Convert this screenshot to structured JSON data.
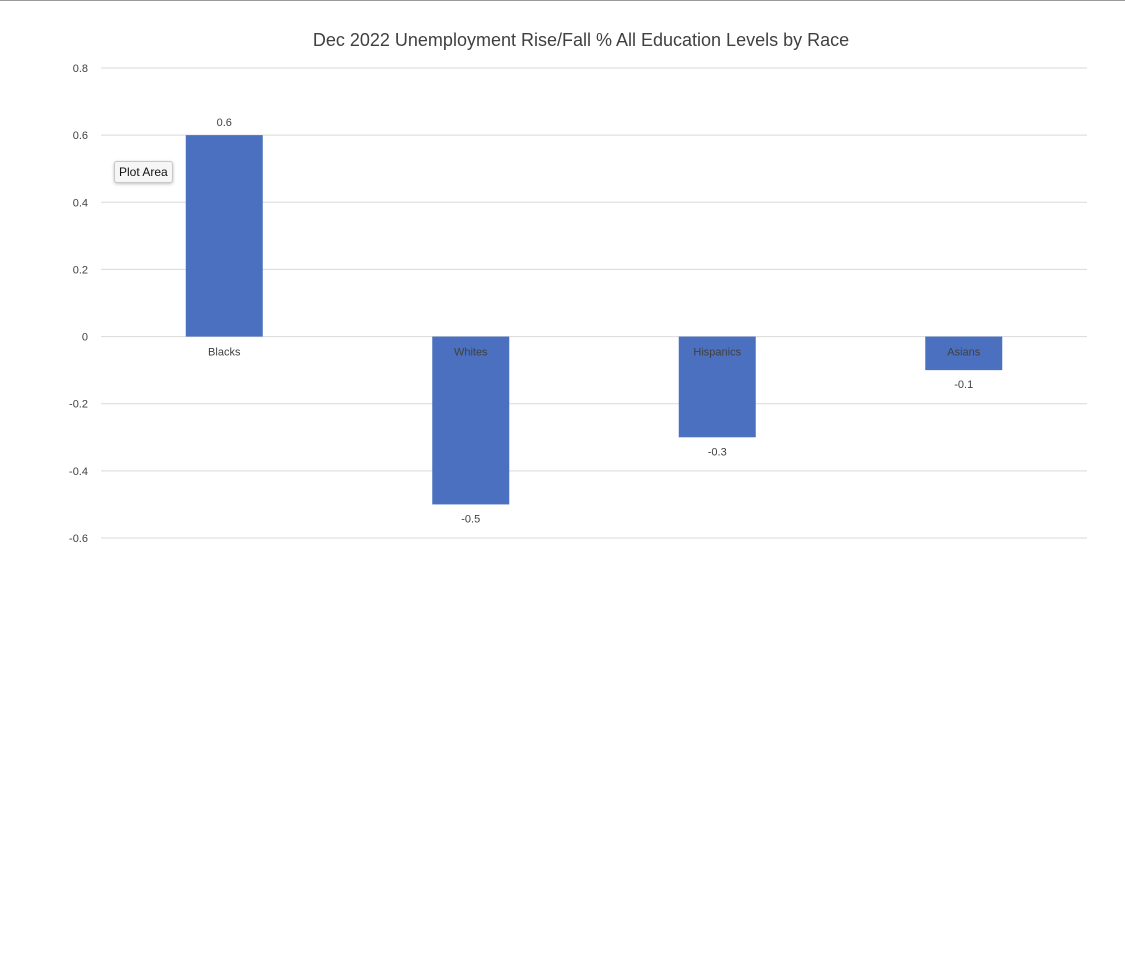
{
  "chart_data": {
    "type": "bar",
    "title": "Dec 2022 Unemployment Rise/Fall % All Education Levels by Race",
    "categories": [
      "Blacks",
      "Whites",
      "Hispanics",
      "Asians"
    ],
    "values": [
      0.6,
      -0.5,
      -0.3,
      -0.1
    ],
    "data_labels": [
      "0.6",
      "-0.5",
      "-0.3",
      "-0.1"
    ],
    "ylim": [
      -0.6,
      0.8
    ],
    "yticks": [
      0.8,
      0.6,
      0.4,
      0.2,
      0,
      -0.2,
      -0.4,
      -0.6
    ],
    "ytick_labels": [
      "0.8",
      "0.6",
      "0.4",
      "0.2",
      "0",
      "-0.2",
      "-0.4",
      "-0.6"
    ],
    "grid": true,
    "legend": "none",
    "bar_color": "#4a70bf"
  },
  "tooltip": {
    "label": "Plot Area"
  }
}
